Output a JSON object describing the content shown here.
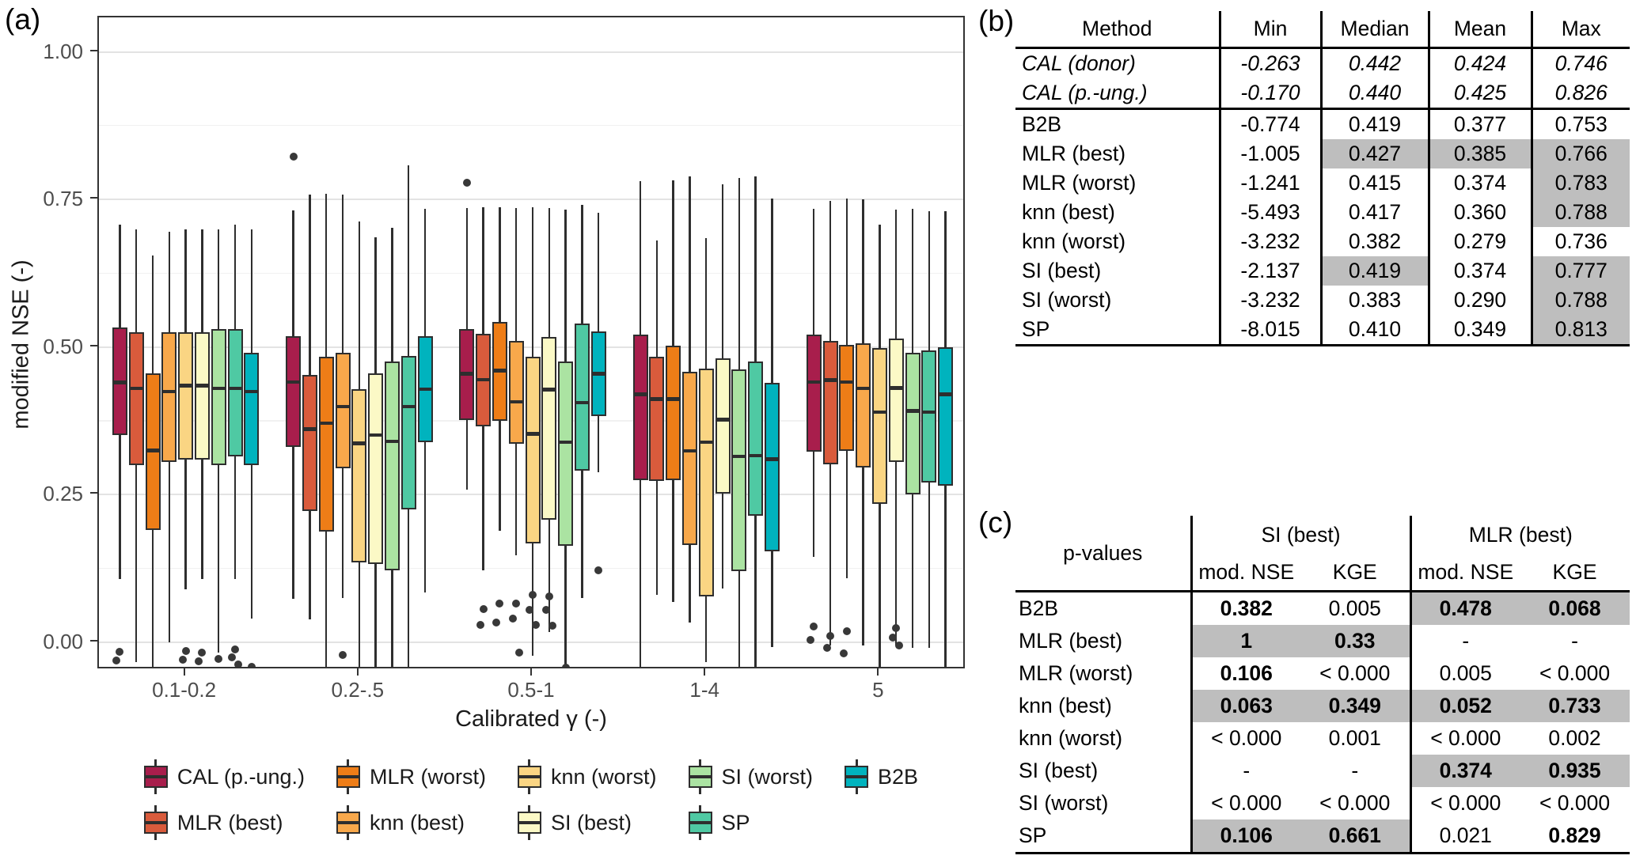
{
  "panels": {
    "a_label": "(a)",
    "b_label": "(b)",
    "c_label": "(c)"
  },
  "chart_data": {
    "type": "boxplot",
    "title": "",
    "xlabel": "Calibrated γ (-)",
    "ylabel": "modified NSE (-)",
    "categories": [
      "0.1-0.2",
      "0.2-.5",
      "0.5-1",
      "1-4",
      "5"
    ],
    "ylim": [
      -0.047,
      1.058
    ],
    "y_ticks": [
      {
        "label": "1.00",
        "value": 1.0
      },
      {
        "label": "0.75",
        "value": 0.75
      },
      {
        "label": "0.50",
        "value": 0.5
      },
      {
        "label": "0.25",
        "value": 0.25
      },
      {
        "label": "0.00",
        "value": 0.0
      }
    ],
    "grid": {
      "major": [
        0.0,
        0.25,
        0.5,
        0.75,
        1.0
      ],
      "minor": [
        0.125,
        0.375,
        0.625,
        0.875
      ]
    },
    "legend_position": "bottom",
    "legend_columns": [
      [
        0,
        1
      ],
      [
        2,
        3
      ],
      [
        4,
        5
      ],
      [
        6,
        7
      ],
      [
        8
      ]
    ],
    "series": [
      {
        "name": "CAL (p.-ung.)",
        "color": "#A81E4C",
        "boxes": [
          [
            0.107,
            0.351,
            0.44,
            0.533,
            0.708
          ],
          [
            0.074,
            0.331,
            0.441,
            0.519,
            0.732
          ],
          [
            0.259,
            0.377,
            0.455,
            0.53,
            0.736
          ],
          [
            -0.046,
            0.275,
            0.42,
            0.521,
            0.781
          ],
          [
            0.145,
            0.323,
            0.441,
            0.521,
            0.734
          ]
        ],
        "outliers": [
          [
            -0.016,
            -0.031
          ],
          [
            0.822
          ],
          [
            0.778
          ],
          [],
          [
            0.027,
            0.004
          ]
        ]
      },
      {
        "name": "MLR (best)",
        "color": "#D95B3C",
        "boxes": [
          [
            -0.034,
            0.3,
            0.43,
            0.525,
            0.7
          ],
          [
            0.039,
            0.222,
            0.361,
            0.453,
            0.758
          ],
          [
            0.122,
            0.366,
            0.445,
            0.522,
            0.737
          ],
          [
            0.081,
            0.273,
            0.412,
            0.483,
            0.68
          ],
          [
            -0.005,
            0.302,
            0.444,
            0.511,
            0.748
          ]
        ],
        "outliers": [
          [],
          [],
          [
            0.056,
            0.03
          ],
          [],
          [
            0.011,
            -0.009
          ]
        ]
      },
      {
        "name": "MLR (worst)",
        "color": "#EE7D17",
        "boxes": [
          [
            -0.047,
            0.19,
            0.325,
            0.455,
            0.655
          ],
          [
            -0.05,
            0.188,
            0.371,
            0.484,
            0.76
          ],
          [
            0.189,
            0.375,
            0.46,
            0.543,
            0.737
          ],
          [
            0.068,
            0.275,
            0.412,
            0.502,
            0.782
          ],
          [
            0.108,
            0.324,
            0.441,
            0.504,
            0.752
          ]
        ],
        "outliers": [
          [],
          [],
          [
            0.065,
            0.033
          ],
          [],
          [
            0.019,
            -0.019
          ]
        ]
      },
      {
        "name": "knn (best)",
        "color": "#F8A84B",
        "boxes": [
          [
            0.0,
            0.305,
            0.425,
            0.525,
            0.695
          ],
          [
            0.075,
            0.295,
            0.399,
            0.49,
            0.758
          ],
          [
            0.148,
            0.336,
            0.407,
            0.511,
            0.736
          ],
          [
            0.033,
            0.165,
            0.324,
            0.458,
            0.789
          ],
          [
            -0.006,
            0.296,
            0.43,
            0.507,
            0.75
          ]
        ],
        "outliers": [
          [],
          [
            -0.022
          ],
          [
            0.066,
            0.04,
            -0.017
          ],
          [],
          []
        ]
      },
      {
        "name": "knn (worst)",
        "color": "#FAD583",
        "boxes": [
          [
            0.09,
            0.31,
            0.435,
            0.525,
            0.7
          ],
          [
            -0.05,
            0.135,
            0.337,
            0.429,
            0.713
          ],
          [
            -0.023,
            0.167,
            0.353,
            0.484,
            0.737
          ],
          [
            -0.033,
            0.078,
            0.339,
            0.464,
            0.685
          ],
          [
            -0.05,
            0.235,
            0.39,
            0.498,
            0.708
          ]
        ],
        "outliers": [
          [
            -0.015,
            -0.03
          ],
          [],
          [
            0.08,
            0.055,
            0.03
          ],
          [],
          []
        ]
      },
      {
        "name": "SI (best)",
        "color": "#FBF9C6",
        "boxes": [
          [
            0.107,
            0.31,
            0.435,
            0.525,
            0.7
          ],
          [
            -0.055,
            0.132,
            0.351,
            0.456,
            0.686
          ],
          [
            0.017,
            0.208,
            0.428,
            0.517,
            0.735
          ],
          [
            0.091,
            0.252,
            0.377,
            0.481,
            0.776
          ],
          [
            -0.006,
            0.305,
            0.431,
            0.514,
            0.733
          ]
        ],
        "outliers": [
          [
            -0.018,
            -0.032
          ],
          [],
          [
            0.078,
            0.055,
            0.028
          ],
          [],
          [
            0.024,
            0.008,
            -0.006
          ]
        ]
      },
      {
        "name": "SI (worst)",
        "color": "#ABE3A2",
        "boxes": [
          [
            -0.018,
            0.3,
            0.43,
            0.53,
            0.7
          ],
          [
            -0.055,
            0.122,
            0.34,
            0.475,
            0.702
          ],
          [
            -0.04,
            0.164,
            0.339,
            0.476,
            0.733
          ],
          [
            -0.046,
            0.121,
            0.315,
            0.462,
            0.787
          ],
          [
            -0.009,
            0.25,
            0.392,
            0.49,
            0.734
          ]
        ],
        "outliers": [
          [
            -0.028
          ],
          [],
          [
            -0.043
          ],
          [],
          []
        ]
      },
      {
        "name": "SP",
        "color": "#4FC9A3",
        "boxes": [
          [
            0.107,
            0.315,
            0.43,
            0.53,
            0.708
          ],
          [
            -0.055,
            0.225,
            0.399,
            0.485,
            0.808
          ],
          [
            0.075,
            0.291,
            0.406,
            0.54,
            0.741
          ],
          [
            -0.046,
            0.214,
            0.316,
            0.476,
            0.789
          ],
          [
            -0.01,
            0.27,
            0.39,
            0.495,
            0.73
          ]
        ],
        "outliers": [
          [
            -0.012,
            -0.025,
            -0.038
          ],
          [],
          [],
          [],
          []
        ]
      },
      {
        "name": "B2B",
        "color": "#00B3BE",
        "boxes": [
          [
            0.04,
            0.3,
            0.425,
            0.49,
            0.7
          ],
          [
            0.085,
            0.339,
            0.429,
            0.518,
            0.734
          ],
          [
            0.288,
            0.383,
            0.455,
            0.526,
            0.727
          ],
          [
            -0.008,
            0.154,
            0.31,
            0.44,
            0.752
          ],
          [
            -0.05,
            0.265,
            0.42,
            0.5,
            0.73
          ]
        ],
        "outliers": [
          [
            -0.042
          ],
          [],
          [
            0.122
          ],
          [],
          []
        ]
      }
    ]
  },
  "table_b": {
    "columns": [
      "Method",
      "Min",
      "Median",
      "Mean",
      "Max"
    ],
    "rows": [
      {
        "method": "CAL (donor)",
        "italic": true,
        "section_end": false,
        "values": [
          "-0.263",
          "0.442",
          "0.424",
          "0.746"
        ],
        "gray": [
          false,
          false,
          false,
          false
        ]
      },
      {
        "method": "CAL (p.-ung.)",
        "italic": true,
        "section_end": true,
        "values": [
          "-0.170",
          "0.440",
          "0.425",
          "0.826"
        ],
        "gray": [
          false,
          false,
          false,
          false
        ]
      },
      {
        "method": "B2B",
        "italic": false,
        "section_end": false,
        "values": [
          "-0.774",
          "0.419",
          "0.377",
          "0.753"
        ],
        "gray": [
          false,
          false,
          false,
          false
        ]
      },
      {
        "method": "MLR (best)",
        "italic": false,
        "section_end": false,
        "values": [
          "-1.005",
          "0.427",
          "0.385",
          "0.766"
        ],
        "gray": [
          false,
          true,
          true,
          true
        ]
      },
      {
        "method": "MLR (worst)",
        "italic": false,
        "section_end": false,
        "values": [
          "-1.241",
          "0.415",
          "0.374",
          "0.783"
        ],
        "gray": [
          false,
          false,
          false,
          true
        ]
      },
      {
        "method": "knn (best)",
        "italic": false,
        "section_end": false,
        "values": [
          "-5.493",
          "0.417",
          "0.360",
          "0.788"
        ],
        "gray": [
          false,
          false,
          false,
          true
        ]
      },
      {
        "method": "knn (worst)",
        "italic": false,
        "section_end": false,
        "values": [
          "-3.232",
          "0.382",
          "0.279",
          "0.736"
        ],
        "gray": [
          false,
          false,
          false,
          false
        ]
      },
      {
        "method": "SI (best)",
        "italic": false,
        "section_end": false,
        "values": [
          "-2.137",
          "0.419",
          "0.374",
          "0.777"
        ],
        "gray": [
          false,
          true,
          false,
          true
        ]
      },
      {
        "method": "SI (worst)",
        "italic": false,
        "section_end": false,
        "values": [
          "-3.232",
          "0.383",
          "0.290",
          "0.788"
        ],
        "gray": [
          false,
          false,
          false,
          true
        ]
      },
      {
        "method": "SP",
        "italic": false,
        "section_end": false,
        "values": [
          "-8.015",
          "0.410",
          "0.349",
          "0.813"
        ],
        "gray": [
          false,
          false,
          false,
          true
        ]
      }
    ]
  },
  "table_c": {
    "corner": "p-values",
    "groups": [
      "SI (best)",
      "MLR (best)"
    ],
    "subcols": [
      "mod. NSE",
      "KGE",
      "mod. NSE",
      "KGE"
    ],
    "rows": [
      {
        "method": "B2B",
        "values": [
          "0.382",
          "0.005",
          "0.478",
          "0.068"
        ],
        "bold": [
          true,
          false,
          true,
          true
        ],
        "gray": [
          false,
          false,
          true,
          true
        ]
      },
      {
        "method": "MLR (best)",
        "values": [
          "1",
          "0.33",
          "-",
          "-"
        ],
        "bold": [
          true,
          true,
          false,
          false
        ],
        "gray": [
          true,
          true,
          false,
          false
        ]
      },
      {
        "method": "MLR (worst)",
        "values": [
          "0.106",
          "< 0.000",
          "0.005",
          "< 0.000"
        ],
        "bold": [
          true,
          false,
          false,
          false
        ],
        "gray": [
          false,
          false,
          false,
          false
        ]
      },
      {
        "method": "knn (best)",
        "values": [
          "0.063",
          "0.349",
          "0.052",
          "0.733"
        ],
        "bold": [
          true,
          true,
          true,
          true
        ],
        "gray": [
          true,
          true,
          true,
          true
        ]
      },
      {
        "method": "knn (worst)",
        "values": [
          "< 0.000",
          "0.001",
          "< 0.000",
          "0.002"
        ],
        "bold": [
          false,
          false,
          false,
          false
        ],
        "gray": [
          false,
          false,
          false,
          false
        ]
      },
      {
        "method": "SI (best)",
        "values": [
          "-",
          "-",
          "0.374",
          "0.935"
        ],
        "bold": [
          false,
          false,
          true,
          true
        ],
        "gray": [
          false,
          false,
          true,
          true
        ]
      },
      {
        "method": "SI (worst)",
        "values": [
          "< 0.000",
          "< 0.000",
          "< 0.000",
          "< 0.000"
        ],
        "bold": [
          false,
          false,
          false,
          false
        ],
        "gray": [
          false,
          false,
          false,
          false
        ]
      },
      {
        "method": "SP",
        "values": [
          "0.106",
          "0.661",
          "0.021",
          "0.829"
        ],
        "bold": [
          true,
          true,
          false,
          true
        ],
        "gray": [
          true,
          true,
          false,
          false
        ]
      }
    ]
  }
}
